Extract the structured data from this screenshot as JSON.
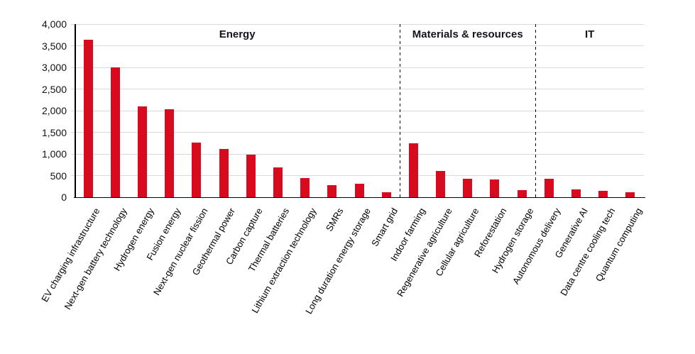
{
  "chart_data": {
    "type": "bar",
    "title": "",
    "xlabel": "",
    "ylabel": "",
    "ylim": [
      0,
      4000
    ],
    "ytick_interval": 500,
    "ytick_labels": [
      "0",
      "500",
      "1,000",
      "1,500",
      "2,000",
      "2,500",
      "3,000",
      "3,500",
      "4,000"
    ],
    "grid": true,
    "legend": "none",
    "categories": [
      "EV charging infrastructure",
      "Next-gen battery technology",
      "Hydrogen energy",
      "Fusion energy",
      "Next-gen nuclear fission",
      "Geothermal power",
      "Carbon capture",
      "Thermal batteries",
      "Lithium extraction technology",
      "SMRs",
      "Long duration energy storage",
      "Smart grid",
      "Indoor farming",
      "Regenerative agriculture",
      "Cellular agriculture",
      "Reforestation",
      "Hydrogen storage",
      "Autonomous delivery",
      "Generative AI",
      "Data centre cooling tech",
      "Quantum computing"
    ],
    "values": [
      3640,
      3000,
      2100,
      2030,
      1265,
      1115,
      985,
      690,
      445,
      285,
      305,
      110,
      1245,
      610,
      420,
      415,
      160,
      425,
      175,
      145,
      115
    ],
    "sections": [
      {
        "label": "Energy",
        "from_index": 0,
        "to_index": 11
      },
      {
        "label": "Materials & resources",
        "from_index": 12,
        "to_index": 16
      },
      {
        "label": "IT",
        "from_index": 17,
        "to_index": 20
      }
    ],
    "colors": {
      "bar": "#d80b1e",
      "gridline": "#d9d9d9",
      "axis": "#000000",
      "text": "#121212",
      "section_label": "#14141c",
      "separator": "#000000"
    }
  }
}
